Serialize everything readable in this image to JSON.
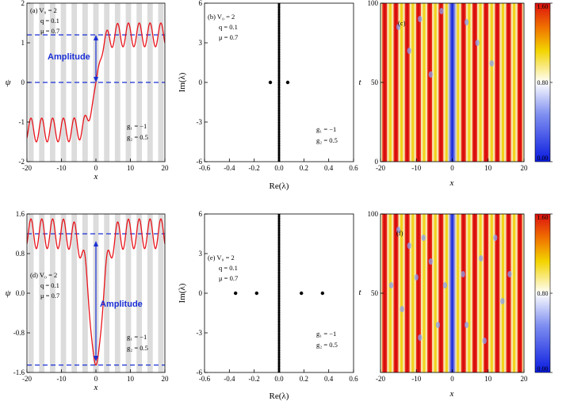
{
  "chart_data": [
    {
      "panel": "a",
      "type": "line",
      "title": "(a) V0 = 2",
      "annotations": [
        "(a) V₀ = 2",
        "q = 0.1",
        "μ = 0.7",
        "g₁ = −1",
        "g₂ = 0.5",
        "Amplitude"
      ],
      "xlabel": "x",
      "ylabel": "ψ",
      "xlim": [
        -20,
        20
      ],
      "ylim": [
        -2,
        2
      ],
      "xticks": [
        "-20",
        "-10",
        "0",
        "10",
        "20"
      ],
      "xtick_values": [
        -20,
        -10,
        0,
        10,
        20
      ],
      "yticks": [
        "-2",
        "-1",
        "0",
        "1",
        "2"
      ],
      "ytick_values": [
        -2,
        -1,
        0,
        1,
        2
      ],
      "dashed_levels": [
        1.2,
        0
      ],
      "series": [
        {
          "name": "psi",
          "kind": "kink",
          "left_level": -1.2,
          "right_level": 1.2,
          "oscillation_amplitude": 0.3,
          "oscillation_period": 3.14,
          "color": "#e8141b"
        }
      ],
      "stripe_period": 3.14
    },
    {
      "panel": "b",
      "type": "scatter",
      "annotations": [
        "(b) V₀ = 2",
        "q = 0.1",
        "μ = 0.7",
        "g₁ = −1",
        "g₂ = 0.5"
      ],
      "xlabel": "Re(λ)",
      "ylabel": "Im(λ)",
      "xlim": [
        -0.6,
        0.6
      ],
      "ylim": [
        -6,
        6
      ],
      "xticks": [
        "-0.6",
        "-0.4",
        "-0.2",
        "0.0",
        "0.2",
        "0.4",
        "0.6"
      ],
      "xtick_values": [
        -0.6,
        -0.4,
        -0.2,
        0,
        0.2,
        0.4,
        0.6
      ],
      "yticks": [
        "-6",
        "-3",
        "0",
        "3",
        "6"
      ],
      "ytick_values": [
        -6,
        -3,
        0,
        3,
        6
      ],
      "points": [
        {
          "x": -0.07,
          "y": 0
        },
        {
          "x": 0.07,
          "y": 0
        }
      ],
      "continuous_spectrum": {
        "x": 0,
        "y_range": [
          -6,
          6
        ]
      }
    },
    {
      "panel": "c",
      "type": "heatmap",
      "label": "(c)",
      "xlabel": "x",
      "ylabel": "t",
      "xlim": [
        -20,
        20
      ],
      "ylim": [
        0,
        100
      ],
      "xticks": [
        "-20",
        "-10",
        "0",
        "10",
        "20"
      ],
      "xtick_values": [
        -20,
        -10,
        0,
        10,
        20
      ],
      "yticks": [
        "0",
        "50",
        "100"
      ],
      "ytick_values": [
        0,
        50,
        100
      ],
      "colorbar": {
        "ticks": [
          "0.00",
          "0.80",
          "1.60"
        ],
        "values": [
          0,
          0.8,
          1.6
        ],
        "colors": [
          "#0a1be0",
          "#ffffff",
          "#e8b900",
          "#dd1010"
        ]
      },
      "pattern": "stationary stripes with blue hole at x=0, weakly perturbed"
    },
    {
      "panel": "d",
      "type": "line",
      "annotations": [
        "(d) V₀ = 2",
        "q = 0.1",
        "μ = 0.7",
        "g₁ = −1",
        "g₂ = 0.5",
        "Amplitude"
      ],
      "xlabel": "x",
      "ylabel": "ψ",
      "xlim": [
        -20,
        20
      ],
      "ylim": [
        -1.6,
        1.6
      ],
      "xticks": [
        "-20",
        "-10",
        "0",
        "10",
        "20"
      ],
      "xtick_values": [
        -20,
        -10,
        0,
        10,
        20
      ],
      "yticks": [
        "-1.6",
        "-0.8",
        "0.0",
        "0.8",
        "1.6"
      ],
      "ytick_values": [
        -1.6,
        -0.8,
        0,
        0.8,
        1.6
      ],
      "dashed_levels": [
        1.2,
        -1.45
      ],
      "series": [
        {
          "name": "psi",
          "kind": "dark",
          "background_level": 1.2,
          "oscillation_amplitude": 0.3,
          "oscillation_period": 3.14,
          "minimum": -1.45,
          "color": "#e8141b"
        }
      ],
      "stripe_period": 3.14
    },
    {
      "panel": "e",
      "type": "scatter",
      "annotations": [
        "(e) V₀ = 2",
        "q = 0.1",
        "μ = 0.7",
        "g₁ = −1",
        "g₂ = 0.5"
      ],
      "xlabel": "Re(λ)",
      "ylabel": "Im(λ)",
      "xlim": [
        -0.6,
        0.6
      ],
      "ylim": [
        -6,
        6
      ],
      "xticks": [
        "-0.6",
        "-0.4",
        "-0.2",
        "0.0",
        "0.2",
        "0.4",
        "0.6"
      ],
      "xtick_values": [
        -0.6,
        -0.4,
        -0.2,
        0,
        0.2,
        0.4,
        0.6
      ],
      "yticks": [
        "-6",
        "-3",
        "0",
        "3",
        "6"
      ],
      "ytick_values": [
        -6,
        -3,
        0,
        3,
        6
      ],
      "points": [
        {
          "x": -0.35,
          "y": 0
        },
        {
          "x": -0.18,
          "y": 0
        },
        {
          "x": 0.18,
          "y": 0
        },
        {
          "x": 0.35,
          "y": 0
        }
      ],
      "continuous_spectrum": {
        "x": 0,
        "y_range": [
          -6,
          6
        ]
      }
    },
    {
      "panel": "f",
      "type": "heatmap",
      "label": "(f)",
      "xlabel": "x",
      "ylabel": "t",
      "xlim": [
        -20,
        20
      ],
      "ylim": [
        0,
        100
      ],
      "xticks": [
        "-20",
        "-10",
        "0",
        "10",
        "20"
      ],
      "xtick_values": [
        -20,
        -10,
        0,
        10,
        20
      ],
      "yticks": [
        "50",
        "100"
      ],
      "ytick_values": [
        50,
        100
      ],
      "colorbar": {
        "ticks": [
          "0.00",
          "0.80",
          "1.60"
        ],
        "values": [
          0,
          0.8,
          1.6
        ],
        "colors": [
          "#0a1be0",
          "#ffffff",
          "#e8b900",
          "#dd1010"
        ]
      },
      "pattern": "unstable stripes with blue hole at x=0 and radiating patterns"
    }
  ]
}
